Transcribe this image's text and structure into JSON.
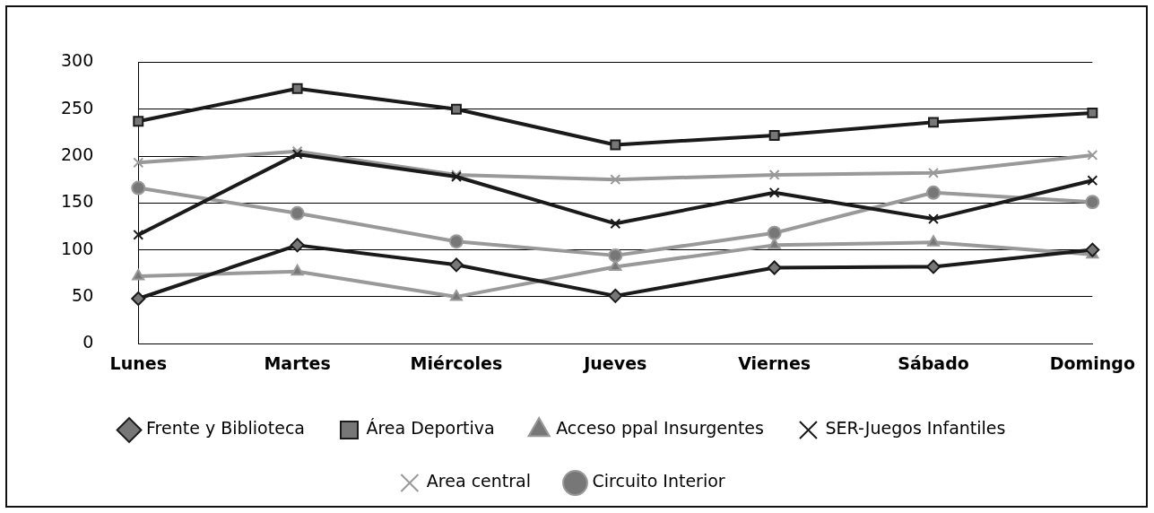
{
  "chart_data": {
    "type": "line",
    "categories": [
      "Lunes",
      "Martes",
      "Miércoles",
      "Jueves",
      "Viernes",
      "Sábado",
      "Domingo"
    ],
    "ylim": [
      0,
      300
    ],
    "yticks": [
      0,
      50,
      100,
      150,
      200,
      250,
      300
    ],
    "grid": "y",
    "legend": "bottom",
    "line_style": "solid",
    "series": [
      {
        "name": "Frente y Biblioteca",
        "color": "#1a1a1a",
        "marker": "diamond",
        "values": [
          48,
          105,
          84,
          51,
          81,
          82,
          100
        ]
      },
      {
        "name": "Área Deportiva",
        "color": "#1a1a1a",
        "marker": "square",
        "values": [
          237,
          272,
          250,
          212,
          222,
          236,
          246
        ]
      },
      {
        "name": "Acceso ppal Insurgentes",
        "color": "#999999",
        "marker": "triangle",
        "values": [
          72,
          77,
          50,
          82,
          105,
          108,
          95
        ]
      },
      {
        "name": "SER-Juegos Infantiles",
        "color": "#1a1a1a",
        "marker": "cross",
        "values": [
          116,
          202,
          178,
          128,
          161,
          133,
          174
        ]
      },
      {
        "name": "Area central",
        "color": "#999999",
        "marker": "cross",
        "values": [
          193,
          205,
          180,
          175,
          180,
          182,
          201
        ]
      },
      {
        "name": "Circuito Interior",
        "color": "#999999",
        "marker": "circle",
        "values": [
          166,
          139,
          109,
          94,
          118,
          161,
          151
        ]
      }
    ]
  }
}
